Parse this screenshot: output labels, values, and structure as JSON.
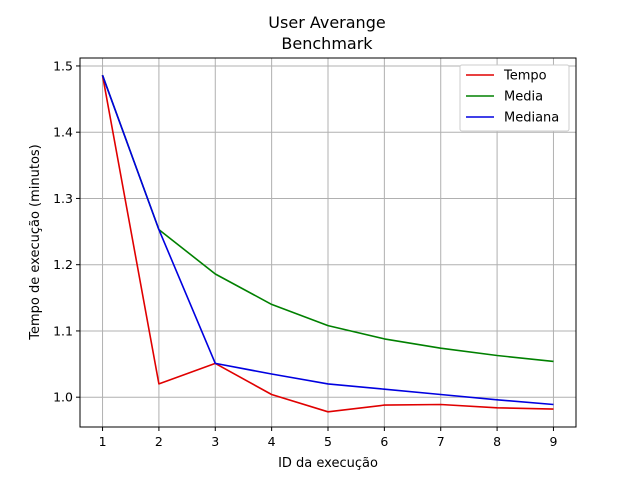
{
  "chart_data": {
    "type": "line",
    "title": [
      "User Averange",
      "Benchmark"
    ],
    "xlabel": "ID da execução",
    "ylabel": "Tempo de execução (minutos)",
    "x": [
      1,
      2,
      3,
      4,
      5,
      6,
      7,
      8,
      9
    ],
    "xlim": [
      0.6,
      9.4
    ],
    "ylim": [
      0.955,
      1.512
    ],
    "xticks": [
      1,
      2,
      3,
      4,
      5,
      6,
      7,
      8,
      9
    ],
    "yticks": [
      1.0,
      1.1,
      1.2,
      1.3,
      1.4,
      1.5
    ],
    "ytick_labels": [
      "1.0",
      "1.1",
      "1.2",
      "1.3",
      "1.4",
      "1.5"
    ],
    "grid": true,
    "legend_position": "top-right",
    "series": [
      {
        "name": "Tempo",
        "color": "#e00000",
        "values": [
          1.486,
          1.02,
          1.051,
          1.004,
          0.978,
          0.988,
          0.989,
          0.984,
          0.982
        ]
      },
      {
        "name": "Media",
        "color": "#008000",
        "values": [
          1.486,
          1.253,
          1.186,
          1.14,
          1.108,
          1.088,
          1.074,
          1.063,
          1.054
        ]
      },
      {
        "name": "Mediana",
        "color": "#0000e0",
        "values": [
          1.486,
          1.253,
          1.051,
          1.035,
          1.02,
          1.012,
          1.004,
          0.996,
          0.989
        ]
      }
    ]
  }
}
